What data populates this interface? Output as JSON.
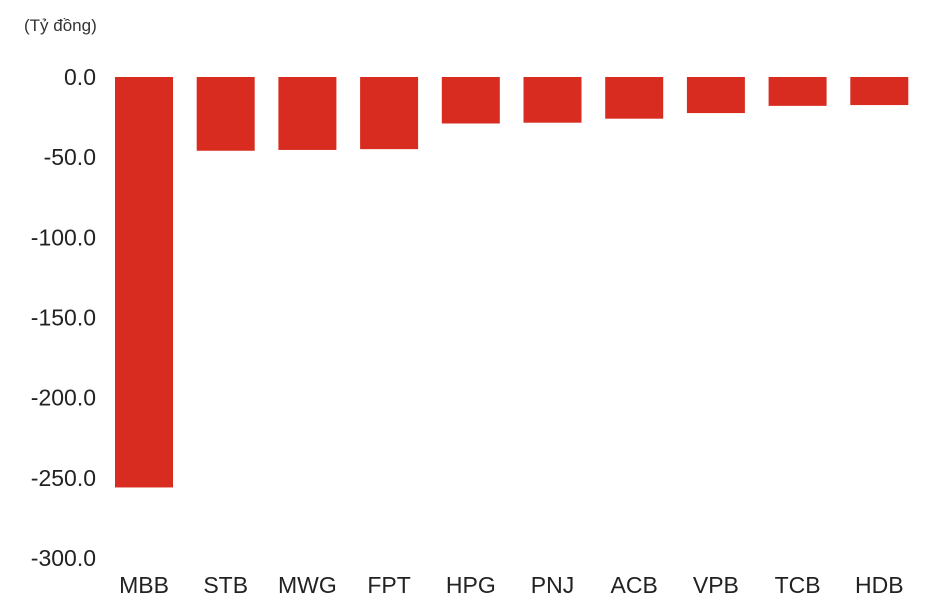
{
  "chart_data": {
    "type": "bar",
    "unit_label": "(Tỷ đồng)",
    "title": "",
    "xlabel": "",
    "ylabel": "",
    "categories": [
      "MBB",
      "STB",
      "MWG",
      "FPT",
      "HPG",
      "PNJ",
      "ACB",
      "VPB",
      "TCB",
      "HDB"
    ],
    "values": [
      -256.0,
      -46.0,
      -45.5,
      -45.0,
      -29.0,
      -28.5,
      -26.0,
      -22.5,
      -18.0,
      -17.5
    ],
    "ylim": [
      -300,
      0
    ],
    "yticks": [
      0,
      -50,
      -100,
      -150,
      -200,
      -250,
      -300
    ],
    "ytick_labels": [
      "0.0",
      "-50.0",
      "-100.0",
      "-150.0",
      "-200.0",
      "-250.0",
      "-300.0"
    ],
    "grid": false,
    "legend": "none",
    "bar_color": "#d82c20"
  }
}
